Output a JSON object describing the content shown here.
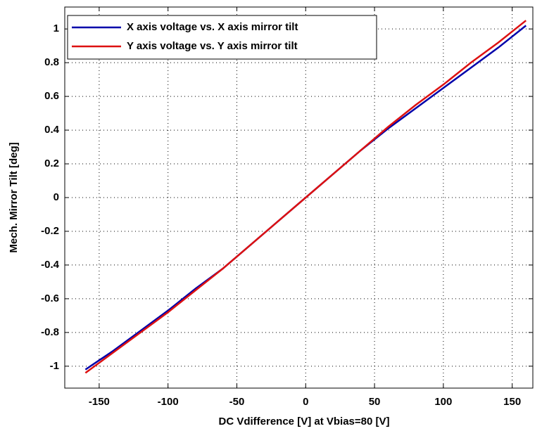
{
  "chart_data": {
    "type": "line",
    "x_label": "DC Vdifference [V] at Vbias=80 [V]",
    "y_label": "Mech. Mirror Tilt [deg]",
    "x": [
      -160,
      -140,
      -120,
      -100,
      -80,
      -60,
      -40,
      -20,
      0,
      20,
      40,
      60,
      80,
      100,
      120,
      140,
      160
    ],
    "series": [
      {
        "name": "X axis voltage vs. X axis mirror tilt",
        "color": "#0000aa",
        "values": [
          -1.02,
          -0.91,
          -0.79,
          -0.67,
          -0.54,
          -0.42,
          -0.28,
          -0.14,
          0,
          0.14,
          0.28,
          0.41,
          0.53,
          0.65,
          0.77,
          0.89,
          1.02
        ]
      },
      {
        "name": "Y axis voltage vs. Y axis mirror tilt",
        "color": "#dd1111",
        "values": [
          -1.04,
          -0.92,
          -0.8,
          -0.68,
          -0.55,
          -0.42,
          -0.28,
          -0.14,
          0,
          0.14,
          0.28,
          0.42,
          0.55,
          0.67,
          0.8,
          0.92,
          1.05
        ]
      }
    ],
    "xlim": [
      -175,
      165
    ],
    "ylim": [
      -1.13,
      1.13
    ],
    "xticks": [
      -150,
      -100,
      -50,
      0,
      50,
      100,
      150
    ],
    "yticks": [
      -1,
      -0.8,
      -0.6,
      -0.4,
      -0.2,
      0,
      0.2,
      0.4,
      0.6,
      0.8,
      1
    ],
    "grid": true,
    "legend": "upper-left"
  }
}
